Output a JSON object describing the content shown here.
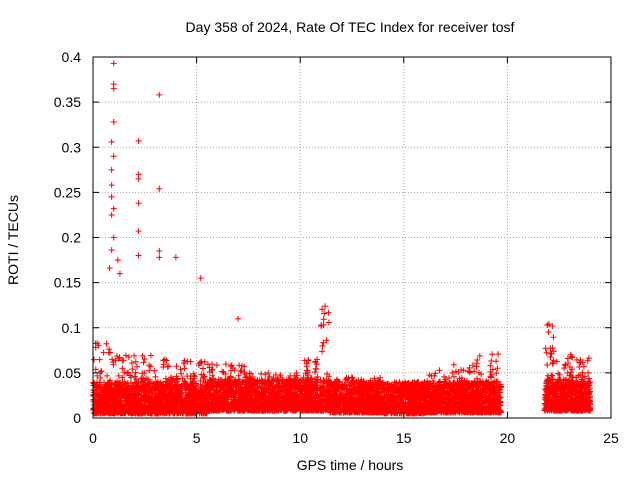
{
  "chart_data": {
    "type": "scatter",
    "title": "Day 358 of 2024, Rate Of TEC Index for receiver tosf",
    "xlabel": "GPS time / hours",
    "ylabel": "ROTI / TECUs",
    "xlim": [
      0,
      25
    ],
    "ylim": [
      0,
      0.4
    ],
    "xticks": [
      0,
      5,
      10,
      15,
      20,
      25
    ],
    "yticks": [
      0,
      0.05,
      0.1,
      0.15,
      0.2,
      0.25,
      0.3,
      0.35,
      0.4
    ],
    "xtick_labels": [
      "0",
      "5",
      "10",
      "15",
      "20",
      "25"
    ],
    "ytick_labels": [
      "0",
      "0.05",
      "0.1",
      "0.15",
      "0.2",
      "0.25",
      "0.3",
      "0.35",
      "0.4"
    ],
    "grid": true,
    "marker": "+",
    "color": "#ff0000",
    "data_gap_hours": [
      19.7,
      21.8
    ],
    "notable_points": [
      {
        "x": 1.0,
        "y": 0.393
      },
      {
        "x": 1.0,
        "y": 0.37
      },
      {
        "x": 1.0,
        "y": 0.365
      },
      {
        "x": 3.2,
        "y": 0.358
      },
      {
        "x": 1.0,
        "y": 0.328
      },
      {
        "x": 2.2,
        "y": 0.307
      },
      {
        "x": 0.9,
        "y": 0.306
      },
      {
        "x": 1.0,
        "y": 0.29
      },
      {
        "x": 0.9,
        "y": 0.275
      },
      {
        "x": 2.2,
        "y": 0.27
      },
      {
        "x": 2.2,
        "y": 0.265
      },
      {
        "x": 0.9,
        "y": 0.258
      },
      {
        "x": 3.2,
        "y": 0.254
      },
      {
        "x": 0.9,
        "y": 0.245
      },
      {
        "x": 2.2,
        "y": 0.238
      },
      {
        "x": 1.0,
        "y": 0.232
      },
      {
        "x": 0.9,
        "y": 0.225
      },
      {
        "x": 2.2,
        "y": 0.207
      },
      {
        "x": 1.0,
        "y": 0.2
      },
      {
        "x": 0.9,
        "y": 0.186
      },
      {
        "x": 3.2,
        "y": 0.185
      },
      {
        "x": 2.2,
        "y": 0.18
      },
      {
        "x": 3.2,
        "y": 0.178
      },
      {
        "x": 4.0,
        "y": 0.178
      },
      {
        "x": 1.2,
        "y": 0.175
      },
      {
        "x": 0.8,
        "y": 0.166
      },
      {
        "x": 1.3,
        "y": 0.16
      },
      {
        "x": 5.2,
        "y": 0.155
      },
      {
        "x": 11.2,
        "y": 0.124
      },
      {
        "x": 7.0,
        "y": 0.11
      },
      {
        "x": 22.0,
        "y": 0.104
      }
    ],
    "dense_bands": [
      {
        "x_start": 0.0,
        "x_end": 1.0,
        "y_min": 0.005,
        "y_max": 0.085
      },
      {
        "x_start": 1.0,
        "x_end": 3.0,
        "y_min": 0.005,
        "y_max": 0.07
      },
      {
        "x_start": 3.0,
        "x_end": 5.5,
        "y_min": 0.005,
        "y_max": 0.065
      },
      {
        "x_start": 5.5,
        "x_end": 7.5,
        "y_min": 0.008,
        "y_max": 0.06
      },
      {
        "x_start": 7.5,
        "x_end": 10.0,
        "y_min": 0.008,
        "y_max": 0.05
      },
      {
        "x_start": 10.0,
        "x_end": 11.0,
        "y_min": 0.008,
        "y_max": 0.065
      },
      {
        "x_start": 11.0,
        "x_end": 11.4,
        "y_min": 0.008,
        "y_max": 0.125
      },
      {
        "x_start": 11.4,
        "x_end": 14.0,
        "y_min": 0.006,
        "y_max": 0.045
      },
      {
        "x_start": 14.0,
        "x_end": 16.0,
        "y_min": 0.005,
        "y_max": 0.04
      },
      {
        "x_start": 16.0,
        "x_end": 18.5,
        "y_min": 0.006,
        "y_max": 0.06
      },
      {
        "x_start": 18.5,
        "x_end": 19.7,
        "y_min": 0.006,
        "y_max": 0.075
      },
      {
        "x_start": 21.8,
        "x_end": 22.4,
        "y_min": 0.008,
        "y_max": 0.104
      },
      {
        "x_start": 22.4,
        "x_end": 24.0,
        "y_min": 0.008,
        "y_max": 0.072
      }
    ]
  }
}
